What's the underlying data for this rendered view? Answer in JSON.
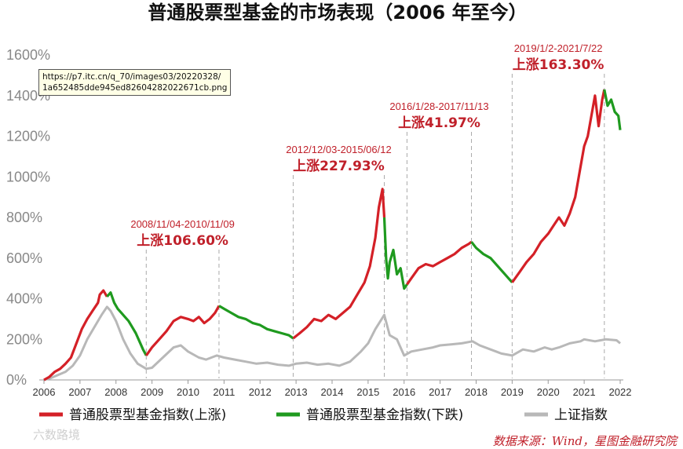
{
  "tooltip": {
    "line1": "https://p7.itc.cn/q_70/images03/20220328/",
    "line2": "1a652485dde945ed82604282022671cb.png"
  },
  "watermark": "六数路境",
  "source": "数据来源：Wind，星图金融研究院",
  "chart_data": {
    "type": "line",
    "title": "普通股票型基金的市场表现（2006 年至今）",
    "ylim": [
      0,
      1600
    ],
    "xlim": [
      2006,
      2022
    ],
    "y_ticks": [
      "0%",
      "200%",
      "400%",
      "600%",
      "800%",
      "1000%",
      "1200%",
      "1400%",
      "1600%"
    ],
    "x_ticks": [
      "2006",
      "2007",
      "2008",
      "2009",
      "2010",
      "2011",
      "2012",
      "2013",
      "2014",
      "2015",
      "2016",
      "2017",
      "2018",
      "2019",
      "2020",
      "2021",
      "2022"
    ],
    "grid": false,
    "legend_position": "bottom",
    "colors": {
      "up": "#d42027",
      "down": "#1f9a1f",
      "index": "#b8b8b8",
      "dash": "#aaaaaa"
    },
    "legend": [
      {
        "label": "普通股票型基金指数(上涨)",
        "color": "#d42027"
      },
      {
        "label": "普通股票型基金指数(下跌)",
        "color": "#1f9a1f"
      },
      {
        "label": "上证指数",
        "color": "#b8b8b8"
      }
    ],
    "series": [
      {
        "name": "普通股票型基金指数",
        "x": [
          2006.0,
          2006.15,
          2006.3,
          2006.45,
          2006.6,
          2006.75,
          2006.9,
          2007.05,
          2007.2,
          2007.35,
          2007.5,
          2007.55,
          2007.65,
          2007.75,
          2007.85,
          2007.95,
          2008.05,
          2008.15,
          2008.25,
          2008.35,
          2008.45,
          2008.55,
          2008.65,
          2008.75,
          2008.84,
          2009.0,
          2009.2,
          2009.4,
          2009.6,
          2009.8,
          2010.0,
          2010.15,
          2010.3,
          2010.45,
          2010.6,
          2010.75,
          2010.86,
          2011.0,
          2011.2,
          2011.4,
          2011.6,
          2011.8,
          2012.0,
          2012.2,
          2012.4,
          2012.6,
          2012.8,
          2012.92,
          2013.1,
          2013.3,
          2013.5,
          2013.7,
          2013.9,
          2014.1,
          2014.3,
          2014.5,
          2014.7,
          2014.9,
          2015.05,
          2015.2,
          2015.3,
          2015.4,
          2015.45,
          2015.5,
          2015.55,
          2015.6,
          2015.7,
          2015.8,
          2015.9,
          2016.0,
          2016.08,
          2016.2,
          2016.4,
          2016.6,
          2016.8,
          2017.0,
          2017.2,
          2017.4,
          2017.6,
          2017.8,
          2017.87,
          2018.0,
          2018.2,
          2018.4,
          2018.6,
          2018.8,
          2019.0,
          2019.2,
          2019.4,
          2019.6,
          2019.8,
          2020.0,
          2020.15,
          2020.3,
          2020.45,
          2020.6,
          2020.75,
          2020.9,
          2021.0,
          2021.1,
          2021.2,
          2021.3,
          2021.4,
          2021.5,
          2021.56,
          2021.65,
          2021.75,
          2021.85,
          2021.95,
          2022.0
        ],
        "values": [
          0,
          15,
          40,
          55,
          80,
          110,
          180,
          250,
          300,
          340,
          380,
          420,
          440,
          410,
          430,
          380,
          350,
          330,
          310,
          290,
          260,
          230,
          190,
          150,
          120,
          160,
          200,
          240,
          290,
          310,
          300,
          290,
          310,
          280,
          300,
          330,
          365,
          350,
          330,
          310,
          300,
          280,
          270,
          250,
          240,
          230,
          220,
          205,
          230,
          260,
          300,
          290,
          320,
          300,
          330,
          360,
          420,
          480,
          560,
          700,
          850,
          940,
          800,
          600,
          500,
          580,
          640,
          520,
          550,
          450,
          470,
          500,
          550,
          570,
          560,
          580,
          600,
          620,
          650,
          670,
          680,
          650,
          620,
          600,
          560,
          520,
          480,
          530,
          580,
          620,
          680,
          720,
          760,
          800,
          760,
          820,
          900,
          1050,
          1150,
          1200,
          1300,
          1400,
          1250,
          1380,
          1430,
          1350,
          1380,
          1320,
          1300,
          1230
        ],
        "segments": [
          {
            "start": 2006.0,
            "end": 2007.75,
            "trend": "up"
          },
          {
            "start": 2007.75,
            "end": 2008.84,
            "trend": "down"
          },
          {
            "start": 2008.84,
            "end": 2010.86,
            "trend": "up"
          },
          {
            "start": 2010.86,
            "end": 2012.92,
            "trend": "down"
          },
          {
            "start": 2012.92,
            "end": 2015.45,
            "trend": "up"
          },
          {
            "start": 2015.45,
            "end": 2016.08,
            "trend": "down"
          },
          {
            "start": 2016.08,
            "end": 2017.87,
            "trend": "up"
          },
          {
            "start": 2017.87,
            "end": 2019.0,
            "trend": "down"
          },
          {
            "start": 2019.0,
            "end": 2021.56,
            "trend": "up"
          },
          {
            "start": 2021.56,
            "end": 2022.0,
            "trend": "down"
          }
        ]
      },
      {
        "name": "上证指数",
        "x": [
          2006.0,
          2006.2,
          2006.4,
          2006.6,
          2006.8,
          2007.0,
          2007.2,
          2007.4,
          2007.6,
          2007.75,
          2007.85,
          2008.0,
          2008.2,
          2008.4,
          2008.6,
          2008.84,
          2009.0,
          2009.3,
          2009.6,
          2009.8,
          2010.0,
          2010.3,
          2010.5,
          2010.8,
          2011.0,
          2011.3,
          2011.6,
          2011.9,
          2012.2,
          2012.5,
          2012.8,
          2013.0,
          2013.3,
          2013.6,
          2013.9,
          2014.2,
          2014.5,
          2014.8,
          2015.0,
          2015.2,
          2015.45,
          2015.6,
          2015.8,
          2016.0,
          2016.2,
          2016.5,
          2016.8,
          2017.0,
          2017.3,
          2017.6,
          2017.9,
          2018.1,
          2018.4,
          2018.7,
          2019.0,
          2019.3,
          2019.6,
          2019.9,
          2020.1,
          2020.3,
          2020.6,
          2020.9,
          2021.0,
          2021.3,
          2021.6,
          2021.9,
          2022.0
        ],
        "values": [
          0,
          10,
          25,
          40,
          70,
          120,
          200,
          260,
          320,
          360,
          340,
          290,
          200,
          130,
          80,
          55,
          60,
          110,
          160,
          170,
          140,
          110,
          100,
          120,
          110,
          100,
          90,
          80,
          85,
          75,
          70,
          80,
          85,
          75,
          80,
          70,
          90,
          140,
          180,
          250,
          320,
          220,
          200,
          120,
          140,
          150,
          160,
          170,
          175,
          180,
          190,
          170,
          150,
          130,
          120,
          150,
          140,
          160,
          150,
          160,
          180,
          190,
          200,
          190,
          200,
          195,
          180
        ]
      }
    ],
    "annotations": [
      {
        "date_range": "2008/11/04-2010/11/09",
        "text": "上涨106.60%",
        "x": [
          2008.84,
          2010.86
        ]
      },
      {
        "date_range": "2012/12/03-2015/06/12",
        "text": "上涨227.93%",
        "x": [
          2012.92,
          2015.45
        ]
      },
      {
        "date_range": "2016/1/28-2017/11/13",
        "text": "上涨41.97%",
        "x": [
          2016.08,
          2017.87
        ]
      },
      {
        "date_range": "2019/1/2-2021/7/22",
        "text": "上涨163.30%",
        "x": [
          2019.0,
          2021.56
        ]
      }
    ]
  }
}
